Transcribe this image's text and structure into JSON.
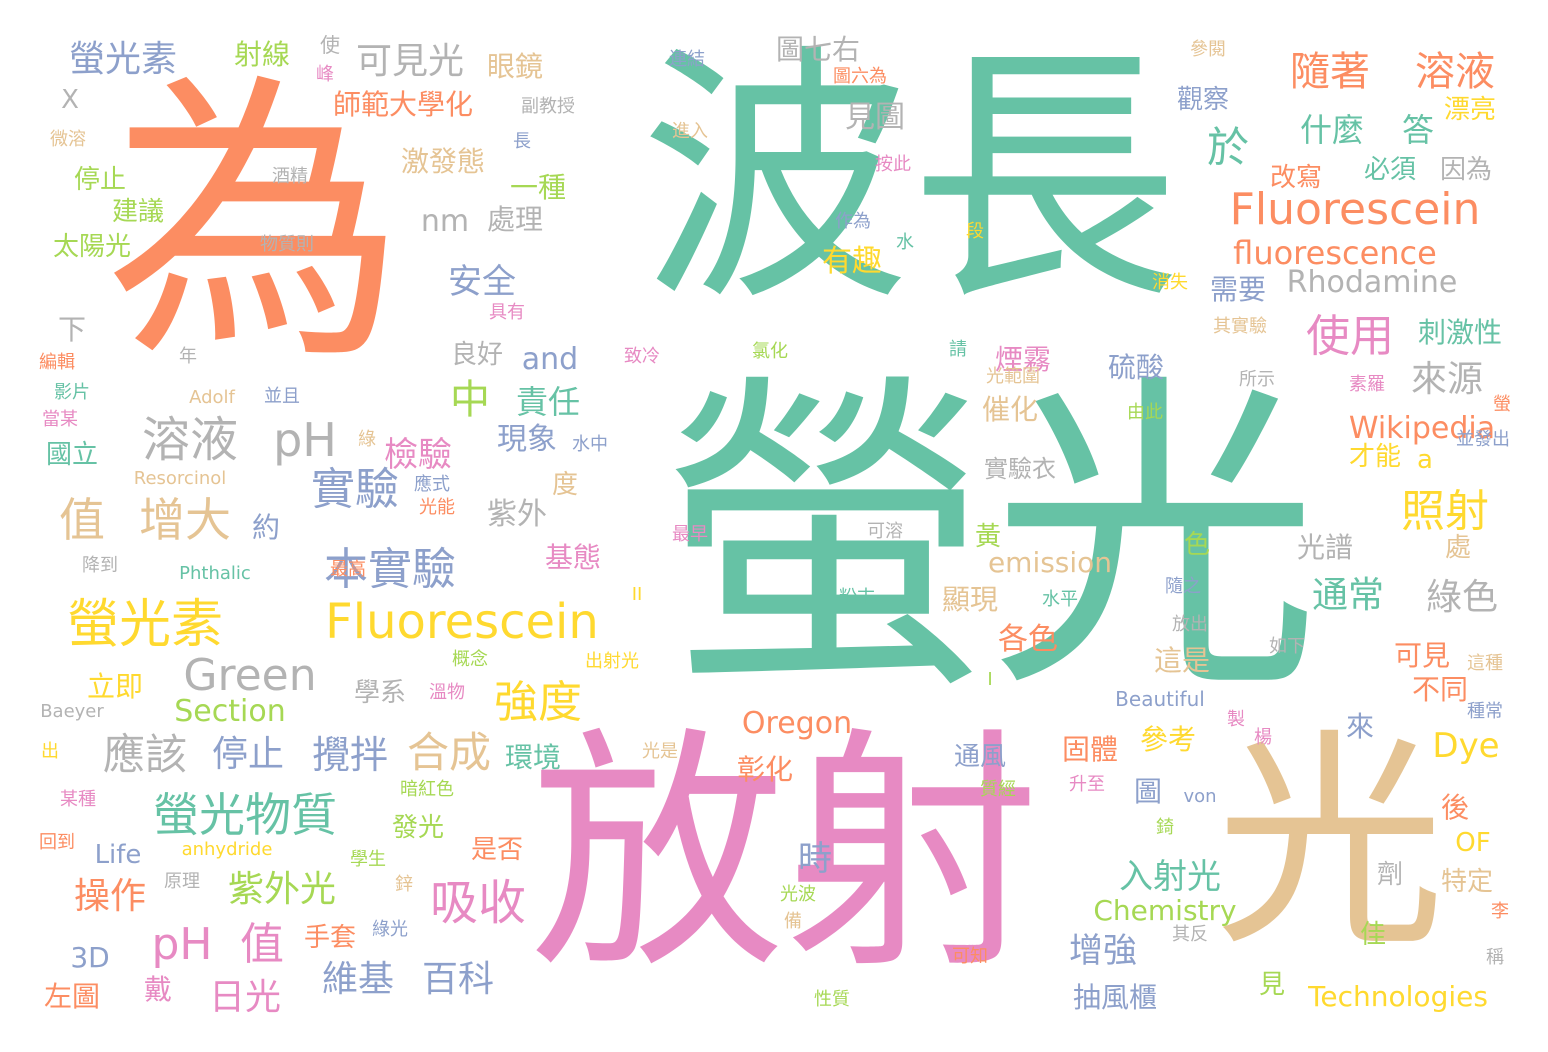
{
  "palette": {
    "green": "#66c2a5",
    "orange": "#fc8d62",
    "blue": "#8da0cb",
    "pink": "#e78ac3",
    "lime": "#a6d854",
    "yellow": "#ffd92f",
    "tan": "#e5c494",
    "gray": "#b3b3b3"
  },
  "words": [
    {
      "text": "波長",
      "color": "green"
    },
    {
      "text": "螢光",
      "color": "green"
    },
    {
      "text": "為",
      "color": "orange"
    },
    {
      "text": "放射",
      "color": "pink"
    },
    {
      "text": "光",
      "color": "tan"
    },
    {
      "text": "螢光素",
      "color": "yellow"
    },
    {
      "text": "Fluorescein",
      "color": "yellow"
    },
    {
      "text": "Fluorescein",
      "color": "orange"
    },
    {
      "text": "fluorescence",
      "color": "orange"
    },
    {
      "text": "隨著",
      "color": "orange"
    },
    {
      "text": "溶液",
      "color": "orange"
    },
    {
      "text": "螢光素",
      "color": "blue"
    },
    {
      "text": "射線",
      "color": "lime"
    },
    {
      "text": "可見光",
      "color": "gray"
    },
    {
      "text": "眼鏡",
      "color": "tan"
    },
    {
      "text": "師範大學化",
      "color": "orange"
    },
    {
      "text": "激發態",
      "color": "tan"
    },
    {
      "text": "一種",
      "color": "lime"
    },
    {
      "text": "nm",
      "color": "gray"
    },
    {
      "text": "處理",
      "color": "gray"
    },
    {
      "text": "安全",
      "color": "blue"
    },
    {
      "text": "溶液",
      "color": "gray"
    },
    {
      "text": "pH",
      "color": "gray"
    },
    {
      "text": "值",
      "color": "tan"
    },
    {
      "text": "增大",
      "color": "tan"
    },
    {
      "text": "實驗",
      "color": "blue"
    },
    {
      "text": "本實驗",
      "color": "blue"
    },
    {
      "text": "Green",
      "color": "gray"
    },
    {
      "text": "Section",
      "color": "lime"
    },
    {
      "text": "應該",
      "color": "gray"
    },
    {
      "text": "停止",
      "color": "blue"
    },
    {
      "text": "攪拌",
      "color": "blue"
    },
    {
      "text": "合成",
      "color": "tan"
    },
    {
      "text": "強度",
      "color": "yellow"
    },
    {
      "text": "螢光物質",
      "color": "green"
    },
    {
      "text": "pH",
      "color": "pink"
    },
    {
      "text": "值",
      "color": "pink"
    },
    {
      "text": "吸收",
      "color": "pink"
    },
    {
      "text": "紫外光",
      "color": "lime"
    },
    {
      "text": "操作",
      "color": "orange"
    },
    {
      "text": "日光",
      "color": "pink"
    },
    {
      "text": "維基",
      "color": "blue"
    },
    {
      "text": "百科",
      "color": "blue"
    },
    {
      "text": "於",
      "color": "green"
    },
    {
      "text": "什麼",
      "color": "green"
    },
    {
      "text": "答",
      "color": "green"
    },
    {
      "text": "使用",
      "color": "pink"
    },
    {
      "text": "來源",
      "color": "gray"
    },
    {
      "text": "照射",
      "color": "yellow"
    },
    {
      "text": "通常",
      "color": "green"
    },
    {
      "text": "綠色",
      "color": "gray"
    },
    {
      "text": "Rhodamine",
      "color": "gray"
    },
    {
      "text": "需要",
      "color": "blue"
    },
    {
      "text": "刺激性",
      "color": "green"
    },
    {
      "text": "Wikipedia",
      "color": "orange"
    },
    {
      "text": "Oregon",
      "color": "orange"
    },
    {
      "text": "Dye",
      "color": "yellow"
    },
    {
      "text": "入射光",
      "color": "green"
    },
    {
      "text": "增強",
      "color": "blue"
    },
    {
      "text": "抽風櫃",
      "color": "blue"
    },
    {
      "text": "Technologies",
      "color": "yellow"
    },
    {
      "text": "Chemistry",
      "color": "lime"
    },
    {
      "text": "emission",
      "color": "tan"
    },
    {
      "text": "中",
      "color": "lime"
    },
    {
      "text": "責任",
      "color": "green"
    },
    {
      "text": "and",
      "color": "blue"
    },
    {
      "text": "檢驗",
      "color": "pink"
    },
    {
      "text": "現象",
      "color": "blue"
    },
    {
      "text": "紫外",
      "color": "gray"
    },
    {
      "text": "基態",
      "color": "pink"
    },
    {
      "text": "有趣",
      "color": "yellow"
    },
    {
      "text": "見圖",
      "color": "gray"
    },
    {
      "text": "圖七右",
      "color": "gray"
    },
    {
      "text": "太陽光",
      "color": "lime"
    },
    {
      "text": "建議",
      "color": "lime"
    },
    {
      "text": "停止",
      "color": "lime"
    },
    {
      "text": "國立",
      "color": "green"
    },
    {
      "text": "約",
      "color": "blue"
    },
    {
      "text": "立即",
      "color": "yellow"
    },
    {
      "text": "左圖",
      "color": "orange"
    },
    {
      "text": "戴",
      "color": "pink"
    },
    {
      "text": "3D",
      "color": "blue"
    },
    {
      "text": "Life",
      "color": "blue"
    },
    {
      "text": "環境",
      "color": "green"
    },
    {
      "text": "是否",
      "color": "orange"
    },
    {
      "text": "發光",
      "color": "lime"
    },
    {
      "text": "彰化",
      "color": "orange"
    },
    {
      "text": "固體",
      "color": "orange"
    },
    {
      "text": "參考",
      "color": "yellow"
    },
    {
      "text": "各色",
      "color": "orange"
    },
    {
      "text": "顯現",
      "color": "tan"
    },
    {
      "text": "光譜",
      "color": "gray"
    },
    {
      "text": "這是",
      "color": "tan"
    },
    {
      "text": "可見",
      "color": "orange"
    },
    {
      "text": "不同",
      "color": "orange"
    },
    {
      "text": "通風",
      "color": "blue"
    },
    {
      "text": "硫酸",
      "color": "blue"
    },
    {
      "text": "煙霧",
      "color": "pink"
    },
    {
      "text": "催化",
      "color": "tan"
    },
    {
      "text": "實驗衣",
      "color": "gray"
    },
    {
      "text": "觀察",
      "color": "blue"
    },
    {
      "text": "必須",
      "color": "green"
    },
    {
      "text": "因為",
      "color": "gray"
    },
    {
      "text": "改寫",
      "color": "orange"
    },
    {
      "text": "漂亮",
      "color": "yellow"
    },
    {
      "text": "學系",
      "color": "gray"
    },
    {
      "text": "良好",
      "color": "gray"
    },
    {
      "text": "時",
      "color": "blue"
    },
    {
      "text": "手套",
      "color": "orange"
    },
    {
      "text": "下",
      "color": "gray"
    },
    {
      "text": "X",
      "color": "gray"
    },
    {
      "text": "才能",
      "color": "yellow"
    },
    {
      "text": "Beautiful",
      "color": "blue"
    },
    {
      "text": "Baeyer",
      "color": "gray"
    },
    {
      "text": "Phthalic",
      "color": "green"
    },
    {
      "text": "anhydride",
      "color": "yellow"
    },
    {
      "text": "Resorcinol",
      "color": "tan"
    },
    {
      "text": "Adolf",
      "color": "tan"
    },
    {
      "text": "von",
      "color": "blue"
    },
    {
      "text": "OF",
      "color": "yellow"
    },
    {
      "text": "特定",
      "color": "tan"
    },
    {
      "text": "佳",
      "color": "lime"
    },
    {
      "text": "後",
      "color": "orange"
    },
    {
      "text": "處",
      "color": "tan"
    },
    {
      "text": "來",
      "color": "blue"
    },
    {
      "text": "見",
      "color": "lime"
    },
    {
      "text": "劑",
      "color": "gray"
    },
    {
      "text": "度",
      "color": "tan"
    },
    {
      "text": "黃",
      "color": "lime"
    },
    {
      "text": "色",
      "color": "lime"
    },
    {
      "text": "圖",
      "color": "blue"
    },
    {
      "text": "a",
      "color": "yellow"
    },
    {
      "text": "使",
      "color": "gray"
    },
    {
      "text": "長",
      "color": "blue"
    },
    {
      "text": "微溶",
      "color": "tan"
    },
    {
      "text": "酒精",
      "color": "gray"
    },
    {
      "text": "物質則",
      "color": "gray"
    },
    {
      "text": "副教授",
      "color": "gray"
    },
    {
      "text": "進入",
      "color": "tan"
    },
    {
      "text": "連結",
      "color": "blue"
    },
    {
      "text": "圖六為",
      "color": "orange"
    },
    {
      "text": "按此",
      "color": "pink"
    },
    {
      "text": "作為",
      "color": "blue"
    },
    {
      "text": "水",
      "color": "green"
    },
    {
      "text": "段",
      "color": "yellow"
    },
    {
      "text": "參閱",
      "color": "tan"
    },
    {
      "text": "消失",
      "color": "yellow"
    },
    {
      "text": "其實驗",
      "color": "tan"
    },
    {
      "text": "具有",
      "color": "pink"
    },
    {
      "text": "致冷",
      "color": "pink"
    },
    {
      "text": "氯化",
      "color": "lime"
    },
    {
      "text": "光範圍",
      "color": "tan"
    },
    {
      "text": "由此",
      "color": "lime"
    },
    {
      "text": "所示",
      "color": "gray"
    },
    {
      "text": "素羅",
      "color": "pink"
    },
    {
      "text": "並發出",
      "color": "blue"
    },
    {
      "text": "水中",
      "color": "blue"
    },
    {
      "text": "應式",
      "color": "blue"
    },
    {
      "text": "光能",
      "color": "orange"
    },
    {
      "text": "最早",
      "color": "pink"
    },
    {
      "text": "可溶",
      "color": "gray"
    },
    {
      "text": "最高",
      "color": "orange"
    },
    {
      "text": "降到",
      "color": "gray"
    },
    {
      "text": "粉末",
      "color": "green"
    },
    {
      "text": "水平",
      "color": "green"
    },
    {
      "text": "放出",
      "color": "gray"
    },
    {
      "text": "如下",
      "color": "gray"
    },
    {
      "text": "這種",
      "color": "tan"
    },
    {
      "text": "概念",
      "color": "lime"
    },
    {
      "text": "出射光",
      "color": "yellow"
    },
    {
      "text": "溫物",
      "color": "pink"
    },
    {
      "text": "種常",
      "color": "blue"
    },
    {
      "text": "製",
      "color": "pink"
    },
    {
      "text": "楊",
      "color": "pink"
    },
    {
      "text": "出",
      "color": "yellow"
    },
    {
      "text": "光是",
      "color": "tan"
    },
    {
      "text": "某種",
      "color": "pink"
    },
    {
      "text": "暗紅色",
      "color": "lime"
    },
    {
      "text": "質經",
      "color": "lime"
    },
    {
      "text": "升至",
      "color": "pink"
    },
    {
      "text": "回到",
      "color": "orange"
    },
    {
      "text": "學生",
      "color": "lime"
    },
    {
      "text": "原理",
      "color": "gray"
    },
    {
      "text": "鋅",
      "color": "tan"
    },
    {
      "text": "綠光",
      "color": "blue"
    },
    {
      "text": "光波",
      "color": "lime"
    },
    {
      "text": "備",
      "color": "tan"
    },
    {
      "text": "可知",
      "color": "orange"
    },
    {
      "text": "性質",
      "color": "lime"
    },
    {
      "text": "其反",
      "color": "gray"
    },
    {
      "text": "李",
      "color": "orange"
    },
    {
      "text": "稱",
      "color": "gray"
    },
    {
      "text": "編輯",
      "color": "orange"
    },
    {
      "text": "影片",
      "color": "green"
    },
    {
      "text": "當某",
      "color": "pink"
    },
    {
      "text": "年",
      "color": "gray"
    },
    {
      "text": "並且",
      "color": "blue"
    },
    {
      "text": "峰",
      "color": "pink"
    },
    {
      "text": "綠",
      "color": "tan"
    },
    {
      "text": "隨之",
      "color": "blue"
    },
    {
      "text": "螢",
      "color": "orange"
    },
    {
      "text": "錡",
      "color": "lime"
    },
    {
      "text": "II",
      "color": "yellow"
    },
    {
      "text": "I",
      "color": "lime"
    },
    {
      "text": "請",
      "color": "green"
    }
  ]
}
